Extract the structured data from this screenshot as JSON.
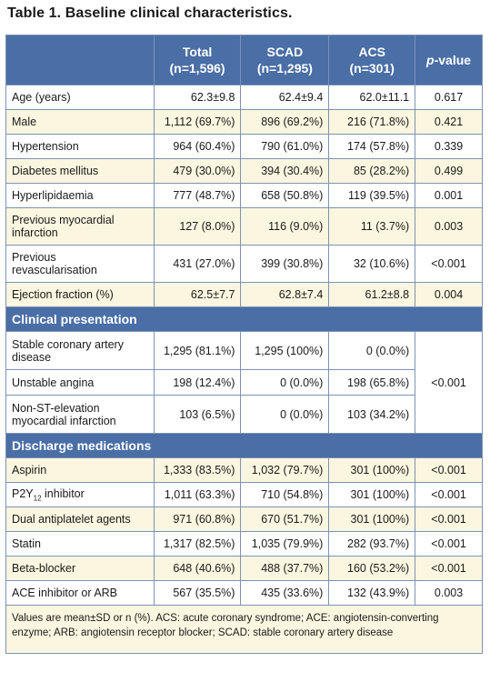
{
  "title": "Table 1. Baseline clinical characteristics.",
  "header": {
    "col_total": "Total",
    "col_total_n": "(n=1,596)",
    "col_scad": "SCAD",
    "col_scad_n": "(n=1,295)",
    "col_acs": "ACS",
    "col_acs_n": "(n=301)",
    "col_p_italic": "p",
    "col_p_rest": "-value"
  },
  "baseline_rows": [
    {
      "label": "Age (years)",
      "total": "62.3±9.8",
      "scad": "62.4±9.4",
      "acs": "62.0±11.1",
      "p": "0.617"
    },
    {
      "label": "Male",
      "total": "1,112 (69.7%)",
      "scad": "896 (69.2%)",
      "acs": "216 (71.8%)",
      "p": "0.421"
    },
    {
      "label": "Hypertension",
      "total": "964 (60.4%)",
      "scad": "790 (61.0%)",
      "acs": "174 (57.8%)",
      "p": "0.339"
    },
    {
      "label": "Diabetes mellitus",
      "total": "479 (30.0%)",
      "scad": "394 (30.4%)",
      "acs": "85 (28.2%)",
      "p": "0.499"
    },
    {
      "label": "Hyperlipidaemia",
      "total": "777 (48.7%)",
      "scad": "658 (50.8%)",
      "acs": "119 (39.5%)",
      "p": "0.001"
    },
    {
      "label_line1": "Previous myocardial",
      "label_line2": "infarction",
      "total": "127 (8.0%)",
      "scad": "116 (9.0%)",
      "acs": "11 (3.7%)",
      "p": "0.003"
    },
    {
      "label_line1": "Previous",
      "label_line2": "revascularisation",
      "total": "431 (27.0%)",
      "scad": "399 (30.8%)",
      "acs": "32 (10.6%)",
      "p": "<0.001"
    },
    {
      "label": "Ejection fraction (%)",
      "total": "62.5±7.7",
      "scad": "62.8±7.4",
      "acs": "61.2±8.8",
      "p": "0.004"
    }
  ],
  "clinical_section": "Clinical presentation",
  "clinical_rows": [
    {
      "label_line1": "Stable coronary artery",
      "label_line2": "disease",
      "total": "1,295 (81.1%)",
      "scad": "1,295 (100%)",
      "acs": "0 (0.0%)"
    },
    {
      "label": "Unstable angina",
      "total": "198 (12.4%)",
      "scad": "0 (0.0%)",
      "acs": "198 (65.8%)"
    },
    {
      "label_line1": "Non-ST-elevation",
      "label_line2": "myocardial infarction",
      "total": "103 (6.5%)",
      "scad": "0 (0.0%)",
      "acs": "103 (34.2%)"
    }
  ],
  "clinical_p": "<0.001",
  "discharge_section": "Discharge medications",
  "discharge_rows": [
    {
      "label": "Aspirin",
      "total": "1,333 (83.5%)",
      "scad": "1,032 (79.7%)",
      "acs": "301 (100%)",
      "p": "<0.001"
    },
    {
      "label_pre": "P2Y",
      "label_sub": "12",
      "label_post": " inhibitor",
      "total": "1,011 (63.3%)",
      "scad": "710 (54.8%)",
      "acs": "301 (100%)",
      "p": "<0.001"
    },
    {
      "label": "Dual antiplatelet agents",
      "total": "971 (60.8%)",
      "scad": "670 (51.7%)",
      "acs": "301 (100%)",
      "p": "<0.001"
    },
    {
      "label": "Statin",
      "total": "1,317 (82.5%)",
      "scad": "1,035 (79.9%)",
      "acs": "282 (93.7%)",
      "p": "<0.001"
    },
    {
      "label": "Beta-blocker",
      "total": "648 (40.6%)",
      "scad": "488 (37.7%)",
      "acs": "160 (53.2%)",
      "p": "<0.001"
    },
    {
      "label": "ACE inhibitor or ARB",
      "total": "567 (35.5%)",
      "scad": "435 (33.6%)",
      "acs": "132 (43.9%)",
      "p": "0.003"
    }
  ],
  "footnote": "Values are mean±SD or n (%). ACS: acute coronary syndrome; ACE: angiotensin-converting enzyme; ARB: angiotensin receptor blocker; SCAD: stable coronary artery disease",
  "colors": {
    "header_blue": "#4a6ea6",
    "row_cream": "#fbf6e0",
    "border": "#7d93b3"
  }
}
